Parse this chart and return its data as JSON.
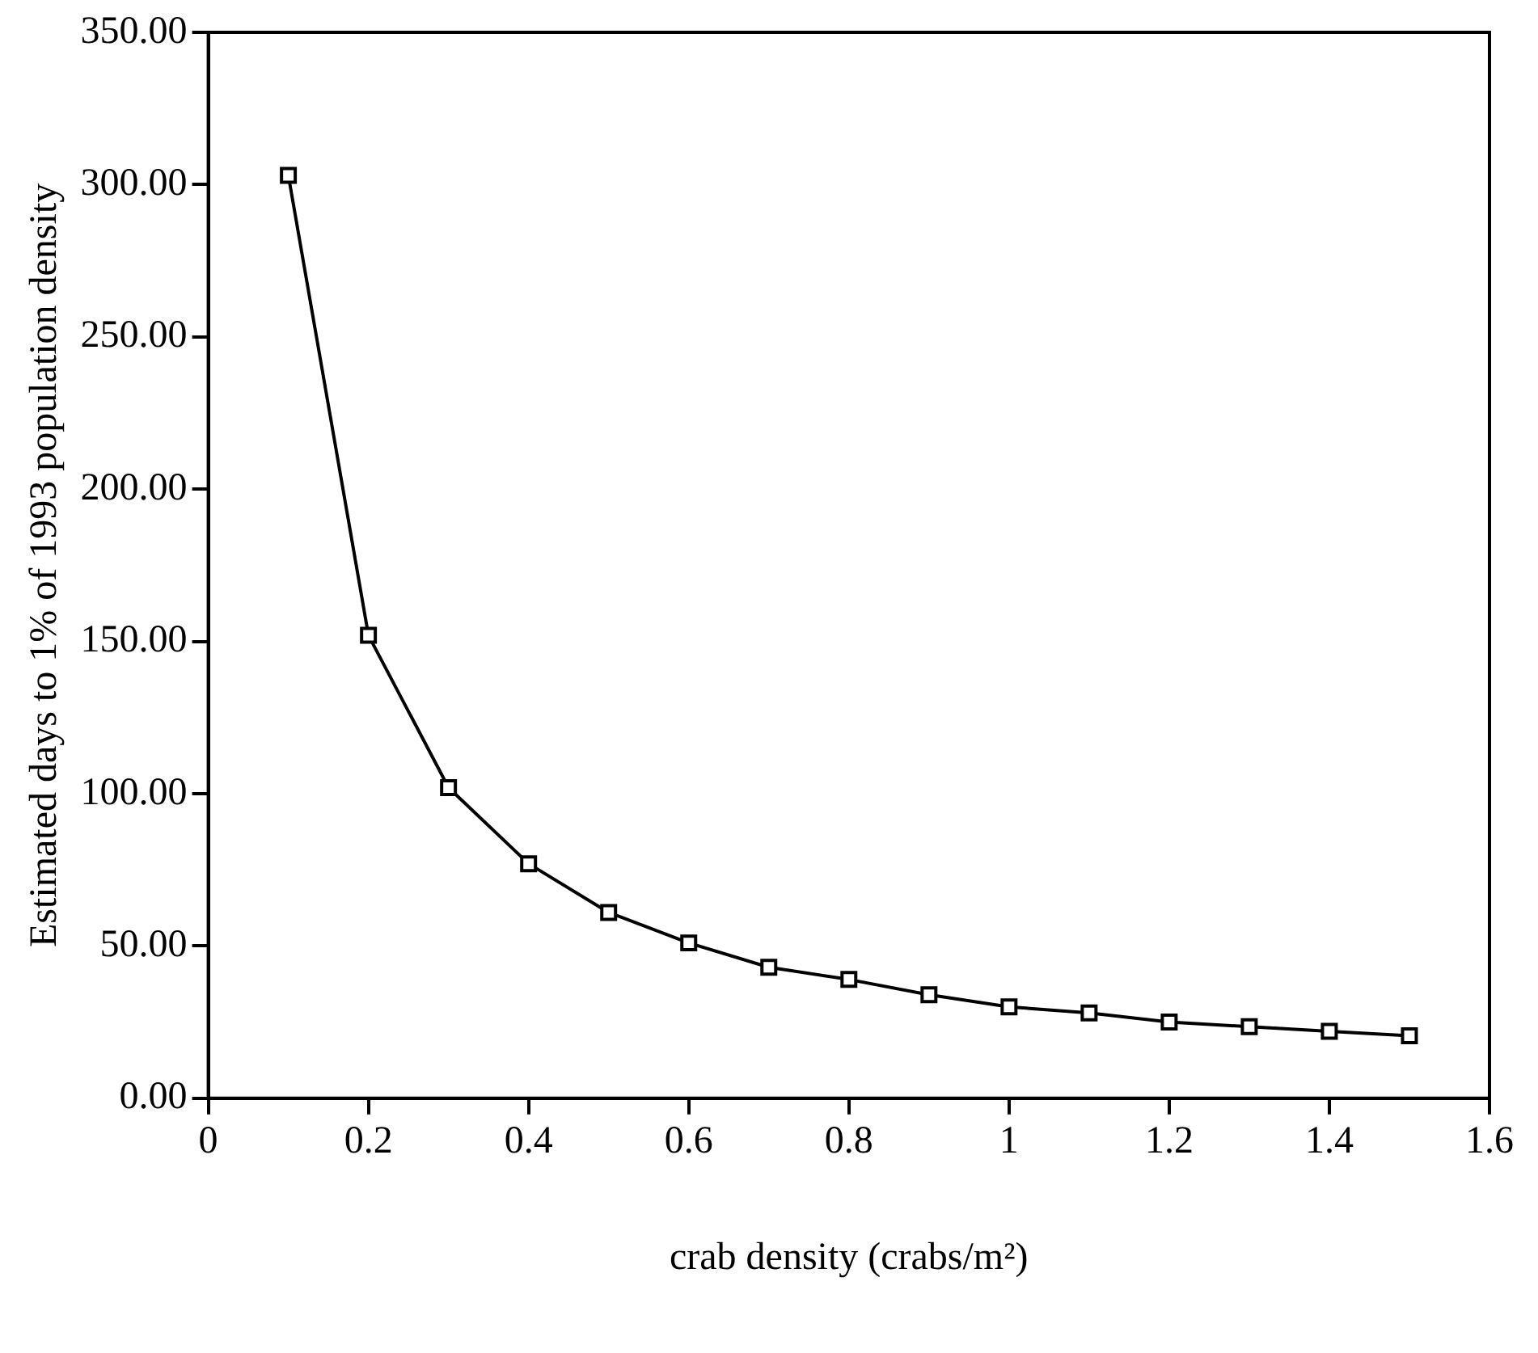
{
  "chart_data": {
    "type": "line",
    "xlabel": "crab density (crabs/m²)",
    "ylabel": "Estimated days to 1% of 1993 population density",
    "x": [
      0.1,
      0.2,
      0.3,
      0.4,
      0.5,
      0.6,
      0.7,
      0.8,
      0.9,
      1.0,
      1.1,
      1.2,
      1.3,
      1.4,
      1.5
    ],
    "series": [
      {
        "color": "#000000",
        "values": [
          303,
          152,
          102,
          77,
          61,
          51,
          43,
          39,
          34,
          30,
          28,
          25,
          23.5,
          22,
          20.5
        ]
      }
    ],
    "xlim": [
      0,
      1.6
    ],
    "xticks": [
      0,
      0.2,
      0.4,
      0.6,
      0.8,
      1,
      1.2,
      1.4,
      1.6
    ],
    "ylim": [
      0,
      350
    ],
    "yticks": [
      {
        "value": 0,
        "label": "0.00"
      },
      {
        "value": 50,
        "label": "50.00"
      },
      {
        "value": 100,
        "label": "100.00"
      },
      {
        "value": 150,
        "label": "150.00"
      },
      {
        "value": 200,
        "label": "200.00"
      },
      {
        "value": 250,
        "label": "250.00"
      },
      {
        "value": 300,
        "label": "300.00"
      },
      {
        "value": 350,
        "label": "350.00"
      }
    ],
    "grid": false,
    "legend": false,
    "marker": "square",
    "line_style": "solid"
  }
}
